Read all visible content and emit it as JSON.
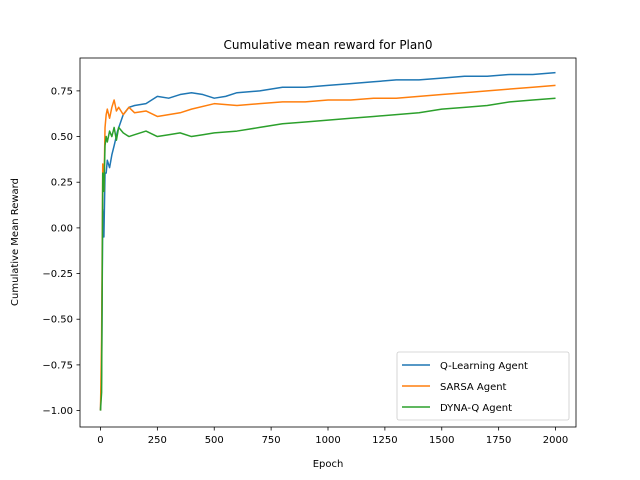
{
  "chart_data": {
    "type": "line",
    "title": "Cumulative mean reward for Plan0",
    "xlabel": "Epoch",
    "ylabel": "Cumulative Mean Reward",
    "xlim": [
      -90,
      2090
    ],
    "ylim": [
      -1.09,
      0.93
    ],
    "xticks": [
      0,
      250,
      500,
      750,
      1000,
      1250,
      1500,
      1750,
      2000
    ],
    "yticks": [
      -1.0,
      -0.75,
      -0.5,
      -0.25,
      0.0,
      0.25,
      0.5,
      0.75
    ],
    "xtick_labels": [
      "0",
      "250",
      "500",
      "750",
      "1000",
      "1250",
      "1500",
      "1750",
      "2000"
    ],
    "ytick_labels": [
      "−1.00",
      "−0.75",
      "−0.50",
      "−0.25",
      "0.00",
      "0.25",
      "0.50",
      "0.75"
    ],
    "grid": false,
    "legend_position": "lower right",
    "series": [
      {
        "name": "Q-Learning Agent",
        "color": "#1f77b4",
        "x": [
          0,
          5,
          10,
          15,
          20,
          25,
          30,
          40,
          50,
          60,
          75,
          100,
          125,
          150,
          200,
          250,
          300,
          350,
          400,
          450,
          500,
          550,
          600,
          700,
          800,
          900,
          1000,
          1100,
          1200,
          1300,
          1400,
          1500,
          1600,
          1700,
          1800,
          1900,
          2000
        ],
        "y": [
          -1.0,
          -0.8,
          0.1,
          -0.05,
          0.3,
          0.3,
          0.37,
          0.33,
          0.4,
          0.45,
          0.53,
          0.62,
          0.66,
          0.67,
          0.68,
          0.72,
          0.71,
          0.73,
          0.74,
          0.73,
          0.71,
          0.72,
          0.74,
          0.75,
          0.77,
          0.77,
          0.78,
          0.79,
          0.8,
          0.81,
          0.81,
          0.82,
          0.83,
          0.83,
          0.84,
          0.84,
          0.85
        ]
      },
      {
        "name": "SARSA Agent",
        "color": "#ff7f0e",
        "x": [
          0,
          5,
          10,
          15,
          20,
          25,
          30,
          40,
          50,
          60,
          70,
          80,
          100,
          125,
          150,
          200,
          250,
          300,
          350,
          400,
          500,
          600,
          700,
          800,
          900,
          1000,
          1100,
          1200,
          1300,
          1400,
          1500,
          1600,
          1700,
          1800,
          1900,
          2000
        ],
        "y": [
          -1.0,
          -0.6,
          0.35,
          0.2,
          0.55,
          0.62,
          0.65,
          0.6,
          0.66,
          0.7,
          0.64,
          0.66,
          0.62,
          0.66,
          0.63,
          0.64,
          0.61,
          0.62,
          0.63,
          0.65,
          0.68,
          0.67,
          0.68,
          0.69,
          0.69,
          0.7,
          0.7,
          0.71,
          0.71,
          0.72,
          0.73,
          0.74,
          0.75,
          0.76,
          0.77,
          0.78
        ]
      },
      {
        "name": "DYNA-Q Agent",
        "color": "#2ca02c",
        "x": [
          0,
          5,
          10,
          15,
          20,
          25,
          30,
          40,
          50,
          60,
          70,
          80,
          100,
          125,
          150,
          200,
          250,
          300,
          350,
          400,
          450,
          500,
          600,
          700,
          800,
          900,
          1000,
          1100,
          1200,
          1300,
          1400,
          1500,
          1600,
          1700,
          1800,
          1900,
          2000
        ],
        "y": [
          -1.0,
          -0.9,
          0.3,
          0.2,
          0.45,
          0.5,
          0.47,
          0.53,
          0.5,
          0.55,
          0.48,
          0.55,
          0.52,
          0.5,
          0.51,
          0.53,
          0.5,
          0.51,
          0.52,
          0.5,
          0.51,
          0.52,
          0.53,
          0.55,
          0.57,
          0.58,
          0.59,
          0.6,
          0.61,
          0.62,
          0.63,
          0.65,
          0.66,
          0.67,
          0.69,
          0.7,
          0.71
        ]
      }
    ]
  }
}
